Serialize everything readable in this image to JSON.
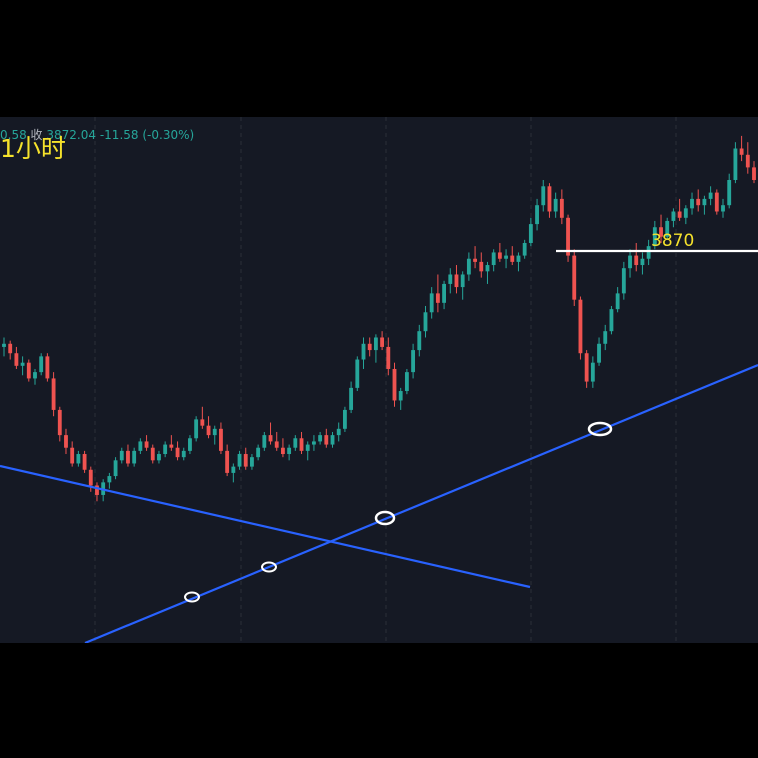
{
  "header": {
    "high_fragment": "0.58",
    "close_label": "收",
    "close_value": "3872.04",
    "change": "-11.58",
    "change_pct": "(-0.30%)",
    "timeframe_label": "1小时"
  },
  "colors": {
    "background": "#151924",
    "up": "#26a69a",
    "down": "#ef5350",
    "trendline": "#2962ff",
    "annotation": "#f5e22c",
    "touch_marker": "#ffffff"
  },
  "chart_data": {
    "type": "candlestick",
    "ylim": [
      3725,
      3892
    ],
    "grid": true,
    "candles": [
      [
        3819,
        3822,
        3816,
        3820
      ],
      [
        3820,
        3821,
        3815,
        3817
      ],
      [
        3817,
        3819,
        3812,
        3813
      ],
      [
        3813,
        3816,
        3810,
        3814
      ],
      [
        3814,
        3815,
        3808,
        3809
      ],
      [
        3809,
        3812,
        3807,
        3811
      ],
      [
        3811,
        3817,
        3810,
        3816
      ],
      [
        3816,
        3817,
        3808,
        3809
      ],
      [
        3809,
        3811,
        3797,
        3799
      ],
      [
        3799,
        3800,
        3789,
        3791
      ],
      [
        3791,
        3793,
        3785,
        3787
      ],
      [
        3787,
        3789,
        3781,
        3782
      ],
      [
        3782,
        3786,
        3781,
        3785
      ],
      [
        3785,
        3786,
        3779,
        3780
      ],
      [
        3780,
        3781,
        3773,
        3775
      ],
      [
        3775,
        3776,
        3770,
        3772
      ],
      [
        3772,
        3777,
        3770,
        3776
      ],
      [
        3776,
        3779,
        3774,
        3778
      ],
      [
        3778,
        3784,
        3777,
        3783
      ],
      [
        3783,
        3787,
        3782,
        3786
      ],
      [
        3786,
        3788,
        3781,
        3782
      ],
      [
        3782,
        3787,
        3781,
        3786
      ],
      [
        3786,
        3790,
        3785,
        3789
      ],
      [
        3789,
        3791,
        3786,
        3787
      ],
      [
        3787,
        3788,
        3782,
        3783
      ],
      [
        3783,
        3786,
        3782,
        3785
      ],
      [
        3785,
        3789,
        3784,
        3788
      ],
      [
        3788,
        3791,
        3786,
        3787
      ],
      [
        3787,
        3789,
        3783,
        3784
      ],
      [
        3784,
        3787,
        3783,
        3786
      ],
      [
        3786,
        3791,
        3785,
        3790
      ],
      [
        3790,
        3797,
        3789,
        3796
      ],
      [
        3796,
        3800,
        3793,
        3794
      ],
      [
        3794,
        3797,
        3790,
        3791
      ],
      [
        3791,
        3794,
        3788,
        3793
      ],
      [
        3793,
        3795,
        3785,
        3786
      ],
      [
        3786,
        3788,
        3778,
        3779
      ],
      [
        3779,
        3782,
        3776,
        3781
      ],
      [
        3781,
        3786,
        3780,
        3785
      ],
      [
        3785,
        3787,
        3780,
        3781
      ],
      [
        3781,
        3785,
        3780,
        3784
      ],
      [
        3784,
        3788,
        3783,
        3787
      ],
      [
        3787,
        3792,
        3786,
        3791
      ],
      [
        3791,
        3795,
        3788,
        3789
      ],
      [
        3789,
        3792,
        3786,
        3787
      ],
      [
        3787,
        3790,
        3784,
        3785
      ],
      [
        3785,
        3788,
        3783,
        3787
      ],
      [
        3787,
        3791,
        3786,
        3790
      ],
      [
        3790,
        3792,
        3785,
        3786
      ],
      [
        3786,
        3789,
        3783,
        3788
      ],
      [
        3788,
        3791,
        3786,
        3789
      ],
      [
        3789,
        3792,
        3788,
        3791
      ],
      [
        3791,
        3793,
        3787,
        3788
      ],
      [
        3788,
        3792,
        3787,
        3791
      ],
      [
        3791,
        3795,
        3789,
        3793
      ],
      [
        3793,
        3800,
        3792,
        3799
      ],
      [
        3799,
        3808,
        3798,
        3806
      ],
      [
        3806,
        3816,
        3805,
        3815
      ],
      [
        3815,
        3822,
        3812,
        3820
      ],
      [
        3820,
        3822,
        3816,
        3818
      ],
      [
        3818,
        3823,
        3814,
        3822
      ],
      [
        3822,
        3824,
        3818,
        3819
      ],
      [
        3819,
        3822,
        3810,
        3812
      ],
      [
        3812,
        3814,
        3800,
        3802
      ],
      [
        3802,
        3806,
        3799,
        3805
      ],
      [
        3805,
        3812,
        3804,
        3811
      ],
      [
        3811,
        3820,
        3809,
        3818
      ],
      [
        3818,
        3826,
        3816,
        3824
      ],
      [
        3824,
        3832,
        3822,
        3830
      ],
      [
        3830,
        3838,
        3828,
        3836
      ],
      [
        3836,
        3842,
        3830,
        3833
      ],
      [
        3833,
        3840,
        3831,
        3839
      ],
      [
        3839,
        3844,
        3836,
        3842
      ],
      [
        3842,
        3845,
        3836,
        3838
      ],
      [
        3838,
        3843,
        3834,
        3842
      ],
      [
        3842,
        3849,
        3840,
        3847
      ],
      [
        3847,
        3851,
        3844,
        3846
      ],
      [
        3846,
        3849,
        3841,
        3843
      ],
      [
        3843,
        3846,
        3839,
        3845
      ],
      [
        3845,
        3850,
        3843,
        3849
      ],
      [
        3849,
        3852,
        3846,
        3847
      ],
      [
        3847,
        3850,
        3844,
        3848
      ],
      [
        3848,
        3851,
        3845,
        3846
      ],
      [
        3846,
        3849,
        3843,
        3848
      ],
      [
        3848,
        3853,
        3847,
        3852
      ],
      [
        3852,
        3860,
        3851,
        3858
      ],
      [
        3858,
        3866,
        3856,
        3864
      ],
      [
        3864,
        3872,
        3862,
        3870
      ],
      [
        3870,
        3871,
        3860,
        3862
      ],
      [
        3862,
        3868,
        3860,
        3866
      ],
      [
        3866,
        3869,
        3858,
        3860
      ],
      [
        3860,
        3861,
        3846,
        3848
      ],
      [
        3848,
        3850,
        3832,
        3834
      ],
      [
        3834,
        3835,
        3815,
        3817
      ],
      [
        3817,
        3818,
        3806,
        3808
      ],
      [
        3808,
        3816,
        3806,
        3814
      ],
      [
        3814,
        3822,
        3813,
        3820
      ],
      [
        3820,
        3826,
        3818,
        3824
      ],
      [
        3824,
        3832,
        3823,
        3831
      ],
      [
        3831,
        3838,
        3830,
        3836
      ],
      [
        3836,
        3846,
        3834,
        3844
      ],
      [
        3844,
        3850,
        3841,
        3848
      ],
      [
        3848,
        3852,
        3843,
        3845
      ],
      [
        3845,
        3849,
        3842,
        3847
      ],
      [
        3847,
        3853,
        3845,
        3851
      ],
      [
        3851,
        3859,
        3850,
        3857
      ],
      [
        3857,
        3861,
        3852,
        3854
      ],
      [
        3854,
        3860,
        3853,
        3859
      ],
      [
        3859,
        3863,
        3857,
        3862
      ],
      [
        3862,
        3866,
        3859,
        3860
      ],
      [
        3860,
        3864,
        3858,
        3863
      ],
      [
        3863,
        3868,
        3861,
        3866
      ],
      [
        3866,
        3869,
        3862,
        3864
      ],
      [
        3864,
        3867,
        3861,
        3866
      ],
      [
        3866,
        3870,
        3864,
        3868
      ],
      [
        3868,
        3869,
        3861,
        3862
      ],
      [
        3862,
        3866,
        3860,
        3864
      ],
      [
        3864,
        3874,
        3863,
        3872
      ],
      [
        3872,
        3884,
        3871,
        3882
      ],
      [
        3882,
        3886,
        3878,
        3880
      ],
      [
        3880,
        3884,
        3874,
        3876
      ],
      [
        3876,
        3878,
        3871,
        3872
      ]
    ],
    "level_label": "3870"
  }
}
